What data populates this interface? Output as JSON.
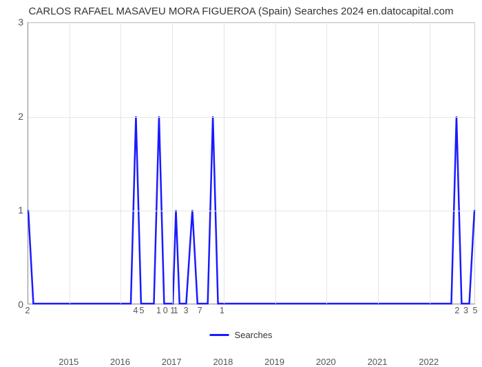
{
  "title": "CARLOS RAFAEL MASAVEU MORA FIGUEROA (Spain) Searches 2024 en.datocapital.com",
  "chart": {
    "type": "line",
    "line_color": "#1a1aff",
    "line_width": 2.5,
    "background_color": "#ffffff",
    "grid_color": "#e5e5e5",
    "axis_color": "#888888",
    "text_color": "#555555",
    "title_fontsize": 15,
    "tick_fontsize": 13,
    "y": {
      "min": 0,
      "max": 3,
      "ticks": [
        0,
        1,
        2,
        3
      ]
    },
    "x": {
      "min": 2014.2,
      "max": 2022.9,
      "ticks": [
        2015,
        2016,
        2017,
        2018,
        2019,
        2020,
        2021,
        2022
      ]
    },
    "series": {
      "name": "Searches",
      "points": [
        [
          2014.2,
          1.0
        ],
        [
          2014.3,
          0.0
        ],
        [
          2016.2,
          0.0
        ],
        [
          2016.3,
          2.0
        ],
        [
          2016.4,
          0.0
        ],
        [
          2016.65,
          0.0
        ],
        [
          2016.75,
          2.0
        ],
        [
          2016.85,
          0.0
        ],
        [
          2016.95,
          0.0
        ],
        [
          2017.02,
          0.0
        ],
        [
          2017.08,
          1.0
        ],
        [
          2017.15,
          0.0
        ],
        [
          2017.2,
          0.0
        ],
        [
          2017.28,
          0.0
        ],
        [
          2017.4,
          1.0
        ],
        [
          2017.5,
          0.0
        ],
        [
          2017.7,
          0.0
        ],
        [
          2017.8,
          2.0
        ],
        [
          2017.9,
          0.0
        ],
        [
          2018.02,
          0.0
        ],
        [
          2018.15,
          0.0
        ],
        [
          2018.2,
          0.0
        ],
        [
          2022.45,
          0.0
        ],
        [
          2022.55,
          2.0
        ],
        [
          2022.65,
          0.0
        ],
        [
          2022.8,
          0.0
        ],
        [
          2022.9,
          1.0
        ]
      ]
    },
    "annotations": [
      {
        "x": 2014.2,
        "label": "2"
      },
      {
        "x": 2016.3,
        "label": "4"
      },
      {
        "x": 2016.42,
        "label": "5"
      },
      {
        "x": 2016.75,
        "label": "1"
      },
      {
        "x": 2016.88,
        "label": "0"
      },
      {
        "x": 2017.02,
        "label": "1"
      },
      {
        "x": 2017.08,
        "label": "1"
      },
      {
        "x": 2017.28,
        "label": "3"
      },
      {
        "x": 2017.55,
        "label": "7"
      },
      {
        "x": 2017.98,
        "label": "1"
      },
      {
        "x": 2022.55,
        "label": "2"
      },
      {
        "x": 2022.72,
        "label": "3"
      },
      {
        "x": 2022.9,
        "label": "5"
      }
    ],
    "legend_label": "Searches"
  }
}
